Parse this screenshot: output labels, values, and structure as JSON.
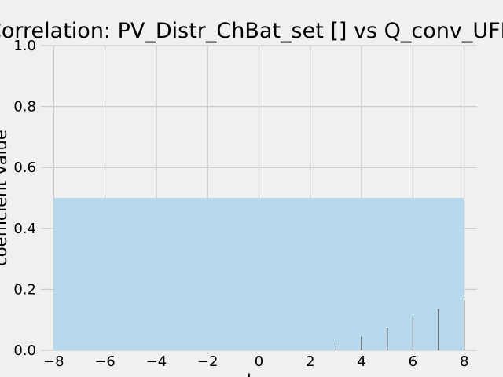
{
  "chart_data": {
    "type": "bar",
    "title": "Correlation: PV_Distr_ChBat_set [] vs Q_conv_UFH",
    "xlabel": "lag",
    "ylabel": "coefficient value",
    "xlim": [
      -8.5,
      8.5
    ],
    "ylim": [
      0,
      1.0
    ],
    "x_ticks": [
      "−8",
      "−6",
      "−4",
      "−2",
      "0",
      "2",
      "4",
      "6",
      "8"
    ],
    "x_tick_values": [
      -8,
      -6,
      -4,
      -2,
      0,
      2,
      4,
      6,
      8
    ],
    "y_ticks": [
      "0.0",
      "0.2",
      "0.4",
      "0.6",
      "0.8",
      "1.0"
    ],
    "y_tick_values": [
      0.0,
      0.2,
      0.4,
      0.6,
      0.8,
      1.0
    ],
    "confidence_band": {
      "x_range": [
        -8,
        8
      ],
      "lower": 0.0,
      "upper": 0.5
    },
    "x": [
      -8,
      -7,
      -6,
      -5,
      -4,
      -3,
      -2,
      -1,
      0,
      1,
      2,
      3,
      4,
      5,
      6,
      7,
      8
    ],
    "values": [
      0,
      0,
      0,
      0,
      0,
      0,
      0,
      0,
      0,
      0,
      0,
      0.022,
      0.045,
      0.075,
      0.105,
      0.135,
      0.165
    ],
    "grid": true,
    "colors": {
      "background": "#f0f0f0",
      "grid": "#cbcbcb",
      "band": "#b3d6ea",
      "bar": "#000000"
    }
  }
}
